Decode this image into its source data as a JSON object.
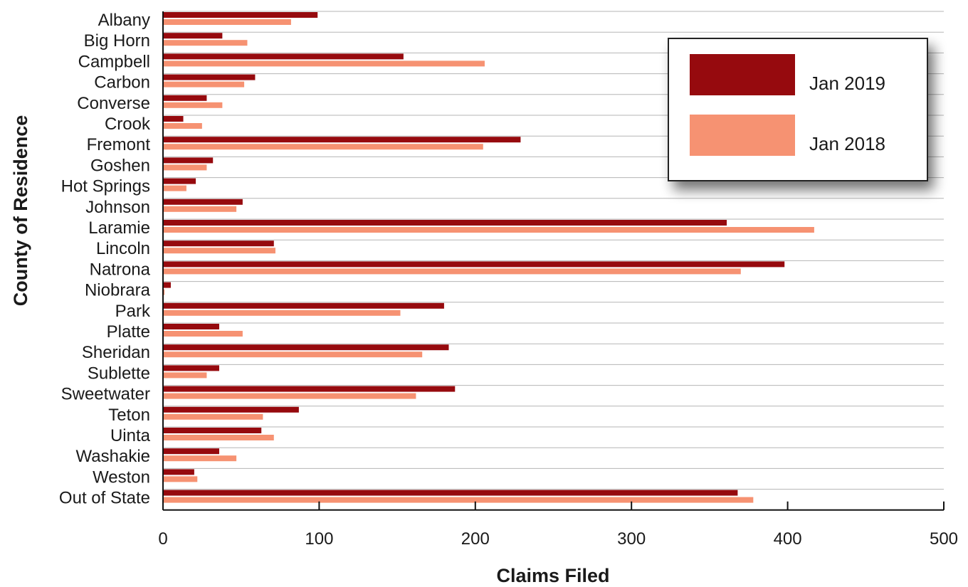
{
  "chart_data": {
    "type": "bar",
    "orientation": "horizontal",
    "xlabel": "Claims Filed",
    "ylabel": "County of Residence",
    "xlim": [
      0,
      500
    ],
    "x_ticks": [
      0,
      100,
      200,
      300,
      400,
      500
    ],
    "grid": true,
    "legend_position": "top-right",
    "categories": [
      "Albany",
      "Big Horn",
      "Campbell",
      "Carbon",
      "Converse",
      "Crook",
      "Fremont",
      "Goshen",
      "Hot Springs",
      "Johnson",
      "Laramie",
      "Lincoln",
      "Natrona",
      "Niobrara",
      "Park",
      "Platte",
      "Sheridan",
      "Sublette",
      "Sweetwater",
      "Teton",
      "Uinta",
      "Washakie",
      "Weston",
      "Out of State"
    ],
    "series": [
      {
        "name": "Jan 2019",
        "color": "#960a0e",
        "values": [
          99,
          38,
          154,
          59,
          28,
          13,
          229,
          32,
          21,
          51,
          361,
          71,
          398,
          5,
          180,
          36,
          183,
          36,
          187,
          87,
          63,
          36,
          20,
          368
        ]
      },
      {
        "name": "Jan 2018",
        "color": "#f69272",
        "values": [
          82,
          54,
          206,
          52,
          38,
          25,
          205,
          28,
          15,
          47,
          417,
          72,
          370,
          1,
          152,
          51,
          166,
          28,
          162,
          64,
          71,
          47,
          22,
          378
        ]
      }
    ]
  }
}
